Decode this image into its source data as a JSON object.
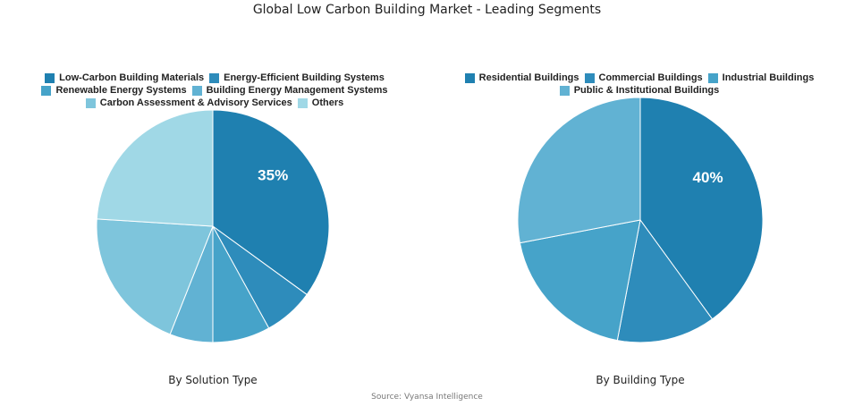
{
  "title": "Global Low Carbon Building Market - Leading Segments",
  "source": "Source: Vyansa Intelligence",
  "chart_data": [
    {
      "type": "pie",
      "caption": "By Solution Type",
      "labels": [
        "Low-Carbon Building Materials",
        "Energy-Efficient Building Systems",
        "Renewable Energy Systems",
        "Building Energy Management Systems",
        "Carbon Assessment & Advisory Services",
        "Others"
      ],
      "values": [
        35,
        7,
        8,
        6,
        20,
        24
      ],
      "colors": [
        "#1f80b0",
        "#2e8cbb",
        "#46a3c9",
        "#61b2d3",
        "#7ec5dc",
        "#a0d8e6"
      ],
      "data_labels": [
        "35%",
        "",
        "",
        "",
        "",
        ""
      ],
      "legend_position": "top"
    },
    {
      "type": "pie",
      "caption": "By Building Type",
      "labels": [
        "Residential Buildings",
        "Commercial Buildings",
        "Industrial Buildings",
        "Public & Institutional Buildings"
      ],
      "values": [
        40,
        13,
        19,
        28
      ],
      "colors": [
        "#1f80b0",
        "#2e8cbb",
        "#46a3c9",
        "#61b2d3"
      ],
      "data_labels": [
        "40%",
        "",
        "",
        ""
      ],
      "legend_position": "top"
    }
  ]
}
